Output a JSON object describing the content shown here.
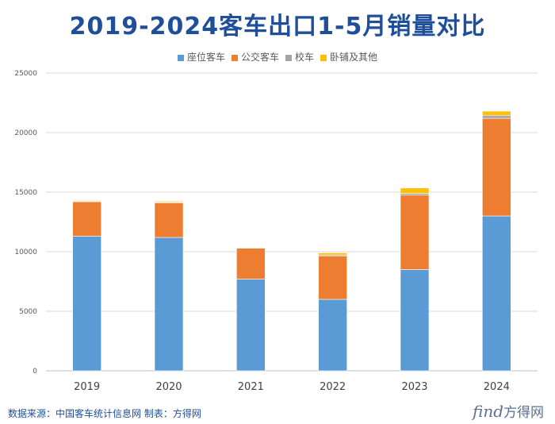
{
  "chart_data": {
    "type": "bar",
    "stacked": true,
    "title": "2019-2024客车出口1-5月销量对比",
    "categories": [
      "2019",
      "2020",
      "2021",
      "2022",
      "2023",
      "2024"
    ],
    "series": [
      {
        "name": "座位客车",
        "color": "#5b9bd5",
        "values": [
          11300,
          11200,
          7700,
          6000,
          8500,
          13000
        ]
      },
      {
        "name": "公交客车",
        "color": "#ed7d31",
        "values": [
          2900,
          2900,
          2600,
          3650,
          6250,
          8200
        ]
      },
      {
        "name": "校车",
        "color": "#a5a5a5",
        "values": [
          40,
          60,
          30,
          80,
          150,
          250
        ]
      },
      {
        "name": "卧铺及其他",
        "color": "#ffc000",
        "values": [
          60,
          80,
          20,
          170,
          450,
          350
        ]
      }
    ],
    "ylim": [
      0,
      25000
    ],
    "yticks": [
      "0",
      "5000",
      "10000",
      "15000",
      "20000",
      "25000"
    ],
    "grid": true,
    "legend_position": "top"
  },
  "footer": {
    "source": "数据来源：中国客车统计信息网  制表：方得网",
    "logo_text": "find",
    "logo_cn": "方得网"
  }
}
